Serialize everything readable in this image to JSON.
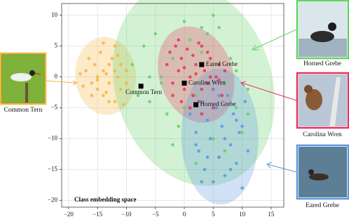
{
  "chart_data": {
    "type": "scatter",
    "annotation": "Class embedding space",
    "xlim": [
      -21.2,
      17.2
    ],
    "ylim": [
      -21.1,
      11.9
    ],
    "xticks": [
      {
        "value": -20,
        "label": "−20"
      },
      {
        "value": -15,
        "label": "−15"
      },
      {
        "value": -10,
        "label": "−10"
      },
      {
        "value": -5,
        "label": "−5"
      },
      0,
      5,
      10,
      15
    ],
    "yticks": [
      {
        "value": -20,
        "label": "−20"
      },
      {
        "value": -15,
        "label": "−15"
      },
      {
        "value": -10,
        "label": "−10"
      },
      {
        "value": -5,
        "label": "−5"
      },
      0,
      5,
      10
    ],
    "grid": true,
    "series": [
      {
        "name": "Common Tern",
        "color": "#f5b53d",
        "x": [
          -18,
          -17,
          -16.5,
          -16,
          -15.5,
          -15,
          -15,
          -14.5,
          -14,
          -14,
          -13.5,
          -13,
          -13,
          -12.5,
          -12,
          -12,
          -11.5,
          -11,
          -11,
          -10.5,
          -10,
          -16,
          -14,
          -12,
          -15,
          -13,
          -11.5,
          -17.5,
          -10,
          -13.5
        ],
        "y": [
          0.5,
          1,
          3,
          -1,
          2,
          0,
          -2,
          4,
          1,
          -3,
          0.5,
          2,
          -1,
          3,
          -4,
          1,
          0,
          -2,
          2,
          -4.5,
          -1,
          -3,
          5.5,
          5,
          -0.5,
          -4,
          3.5,
          -1.5,
          1,
          -2.5
        ]
      },
      {
        "name": "Horned Grebe",
        "color": "#62d262",
        "x": [
          -9,
          -7,
          -6,
          -5,
          -4,
          -3,
          -2,
          -1,
          0,
          1,
          2,
          3,
          4,
          5,
          6,
          7,
          8,
          9,
          10,
          11,
          -8,
          -4,
          -2,
          2,
          5,
          7,
          9,
          11,
          3,
          -6,
          6,
          0
        ],
        "y": [
          2,
          5,
          -4,
          7,
          0,
          -6,
          3,
          -8,
          9,
          6,
          -3,
          4,
          7,
          -10,
          8,
          -12,
          3,
          -5,
          -9,
          -6,
          -3,
          -1,
          -11,
          -14,
          10,
          -1,
          1,
          -2,
          8,
          0,
          -13,
          -5
        ]
      },
      {
        "name": "Carolina Wren",
        "color": "#e8325c",
        "x": [
          -3,
          -2.5,
          -2,
          -1.5,
          -1,
          -0.5,
          0,
          0.5,
          1,
          1.5,
          2,
          2.5,
          3,
          3.5,
          4,
          4.5,
          5,
          5.5,
          6,
          6.5,
          7,
          -2,
          -1,
          1,
          2,
          3,
          4,
          5,
          6,
          0,
          1.5,
          3,
          4.5,
          -0.5,
          2.5
        ],
        "y": [
          2,
          4,
          -1,
          5,
          1,
          3,
          -2,
          4.5,
          0,
          -3,
          2,
          -4,
          5,
          1,
          -1,
          3,
          -5,
          0,
          2,
          -3,
          1,
          -3,
          6,
          -5,
          0.5,
          -2,
          4,
          -2,
          -0.5,
          1.5,
          3.5,
          -6,
          0,
          -4,
          5.5
        ]
      },
      {
        "name": "Eared Grebe",
        "color": "#5b97e0",
        "x": [
          1,
          2,
          2.5,
          3,
          3.5,
          4,
          4.5,
          5,
          5.5,
          6,
          6.5,
          7,
          7.5,
          8,
          8.5,
          9,
          9.5,
          10,
          10.5,
          11,
          3,
          5,
          7,
          9,
          4,
          6,
          8,
          2,
          10,
          5.5
        ],
        "y": [
          -6,
          -9,
          -12,
          -4,
          -15,
          -7,
          -10,
          -17,
          -5,
          -13,
          -8,
          -16,
          -3,
          -11,
          -6,
          -14,
          -9,
          -18,
          -4,
          -12,
          -17,
          -2,
          -10,
          -7,
          -13,
          -3,
          -15,
          -11,
          -8,
          -5
        ]
      }
    ],
    "centers": [
      {
        "label": "Common Tern",
        "x": -7.5,
        "y": -1.5
      },
      {
        "label": "Carolina Wren",
        "x": 0,
        "y": -1
      },
      {
        "label": "Eared Grebe",
        "x": 3,
        "y": 2
      },
      {
        "label": "Horned Grebe",
        "x": 2,
        "y": -4.5
      }
    ]
  }
}
